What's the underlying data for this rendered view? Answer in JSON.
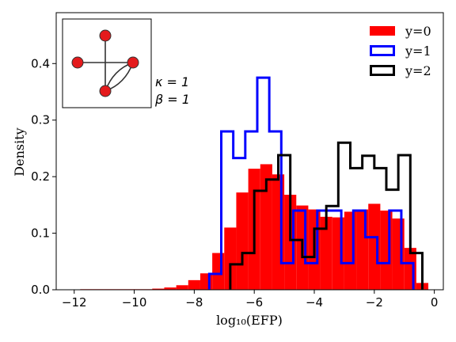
{
  "chart_data": {
    "type": "histogram",
    "xlabel": "log₁₀(EFP)",
    "ylabel": "Density",
    "xlim": [
      -12.6,
      0.3
    ],
    "ylim": [
      0,
      0.49
    ],
    "xticks": [
      -12,
      -10,
      -8,
      -6,
      -4,
      -2,
      0
    ],
    "xtick_labels": [
      "−12",
      "−10",
      "−8",
      "−6",
      "−4",
      "−2",
      "0"
    ],
    "yticks": [
      0.0,
      0.1,
      0.2,
      0.3,
      0.4
    ],
    "ytick_labels": [
      "0.0",
      "0.1",
      "0.2",
      "0.3",
      "0.4"
    ],
    "legend_position": "top-right",
    "annotation": [
      "κ = 1",
      "β = 1"
    ],
    "series": [
      {
        "name": "y=0",
        "style": "filled",
        "color": "#ff0000",
        "bin_edges": [
          -11.8,
          -11.4,
          -11.0,
          -10.6,
          -10.2,
          -9.8,
          -9.4,
          -9.0,
          -8.6,
          -8.2,
          -7.8,
          -7.4,
          -7.0,
          -6.6,
          -6.2,
          -5.8,
          -5.4,
          -5.0,
          -4.6,
          -4.2,
          -3.8,
          -3.4,
          -3.0,
          -2.6,
          -2.2,
          -1.8,
          -1.4,
          -1.0,
          -0.6,
          -0.2
        ],
        "values": [
          0.001,
          0.001,
          0.001,
          0.001,
          0.001,
          0.001,
          0.002,
          0.004,
          0.008,
          0.017,
          0.029,
          0.065,
          0.11,
          0.172,
          0.214,
          0.222,
          0.204,
          0.168,
          0.149,
          0.142,
          0.129,
          0.128,
          0.138,
          0.142,
          0.152,
          0.14,
          0.126,
          0.074,
          0.012
        ]
      },
      {
        "name": "y=1",
        "style": "step",
        "color": "#0000ff",
        "bin_edges": [
          -7.5,
          -7.1,
          -6.7,
          -6.3,
          -5.9,
          -5.5,
          -5.1,
          -4.7,
          -4.3,
          -3.9,
          -3.5,
          -3.1,
          -2.7,
          -2.3,
          -1.9,
          -1.5,
          -1.1,
          -0.7
        ],
        "values": [
          0.028,
          0.28,
          0.233,
          0.28,
          0.375,
          0.28,
          0.047,
          0.14,
          0.047,
          0.14,
          0.14,
          0.047,
          0.14,
          0.093,
          0.047,
          0.14,
          0.047
        ]
      },
      {
        "name": "y=2",
        "style": "step",
        "color": "#000000",
        "bin_edges": [
          -6.8,
          -6.4,
          -6.0,
          -5.6,
          -5.2,
          -4.8,
          -4.4,
          -4.0,
          -3.6,
          -3.2,
          -2.8,
          -2.4,
          -2.0,
          -1.6,
          -1.2,
          -0.8,
          -0.4
        ],
        "values": [
          0.045,
          0.065,
          0.175,
          0.195,
          0.238,
          0.088,
          0.058,
          0.108,
          0.148,
          0.26,
          0.215,
          0.237,
          0.215,
          0.177,
          0.238,
          0.065
        ]
      }
    ]
  }
}
